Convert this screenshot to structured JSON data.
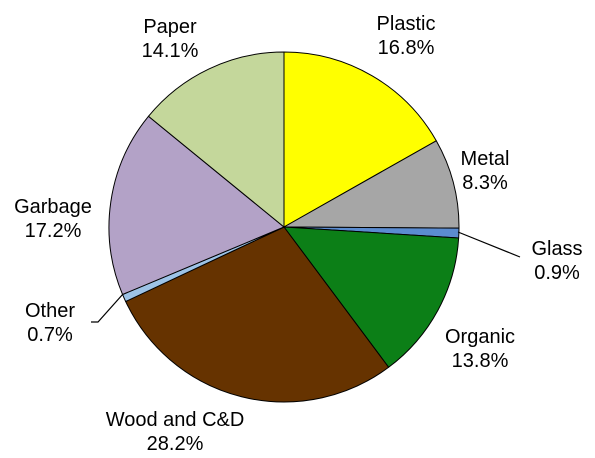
{
  "chart_data": {
    "type": "pie",
    "title": "",
    "slices": [
      {
        "label": "Plastic",
        "value": 16.8,
        "display": "16.8%",
        "color": "#FFFF00"
      },
      {
        "label": "Metal",
        "value": 8.3,
        "display": "8.3%",
        "color": "#A6A6A6"
      },
      {
        "label": "Glass",
        "value": 0.9,
        "display": "0.9%",
        "color": "#5B8CD0"
      },
      {
        "label": "Organic",
        "value": 13.8,
        "display": "13.8%",
        "color": "#0C7F17"
      },
      {
        "label": "Wood and C&D",
        "value": 28.2,
        "display": "28.2%",
        "color": "#663300"
      },
      {
        "label": "Other",
        "value": 0.7,
        "display": "0.7%",
        "color": "#9DC3E6"
      },
      {
        "label": "Garbage",
        "value": 17.2,
        "display": "17.2%",
        "color": "#B3A2C7"
      },
      {
        "label": "Paper",
        "value": 14.1,
        "display": "14.1%",
        "color": "#C4D79B"
      }
    ],
    "start_angle": "12 o'clock",
    "direction": "clockwise",
    "legend": "none",
    "labels": "outside"
  }
}
